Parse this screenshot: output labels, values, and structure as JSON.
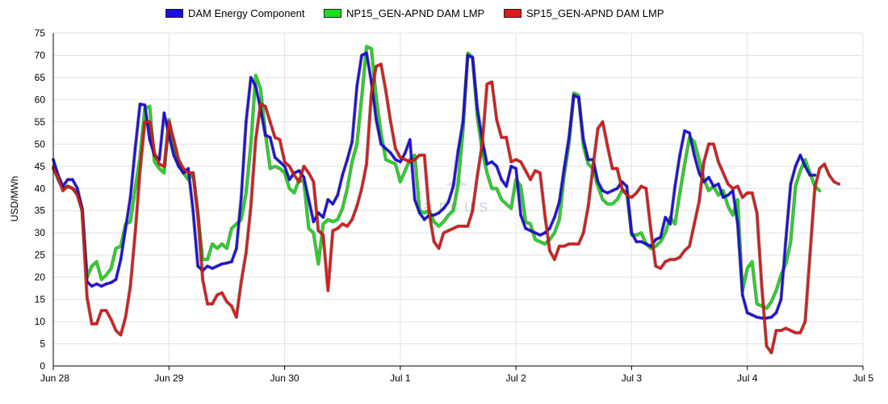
{
  "legend": {
    "items": [
      {
        "label": "DAM Energy Component",
        "color": "#1a0de6"
      },
      {
        "label": "NP15_GEN-APND DAM LMP",
        "color": "#1adf1a"
      },
      {
        "label": "SP15_GEN-APND DAM LMP",
        "color": "#e01818"
      }
    ]
  },
  "watermark": {
    "text": "arcus"
  },
  "chart_data": {
    "type": "line",
    "title": "",
    "xlabel": "",
    "ylabel": "USD/MWh",
    "ylim": [
      0,
      75
    ],
    "yticks": [
      0,
      5,
      10,
      15,
      20,
      25,
      30,
      35,
      40,
      45,
      50,
      55,
      60,
      65,
      70,
      75
    ],
    "xticks": [
      "Jun 28",
      "Jun 29",
      "Jun 30",
      "Jul 1",
      "Jul 2",
      "Jul 3",
      "Jul 4",
      "Jul 5"
    ],
    "x_unit": "hour",
    "grid": true,
    "legend_position": "top",
    "series": [
      {
        "name": "DAM Energy Component",
        "color": "#1a0de6",
        "values": [
          46.5,
          43.0,
          40.5,
          42.0,
          42.0,
          40.0,
          35.5,
          19.0,
          18.0,
          18.5,
          18.0,
          18.5,
          18.8,
          19.5,
          24.0,
          31.0,
          38.0,
          49.0,
          59.0,
          58.8,
          51.0,
          47.5,
          46.5,
          57.0,
          52.0,
          47.5,
          45.0,
          43.5,
          44.5,
          35.0,
          22.5,
          21.5,
          22.5,
          22.0,
          22.5,
          23.0,
          23.2,
          23.5,
          26.5,
          38.0,
          55.0,
          65.0,
          63.0,
          58.0,
          52.0,
          51.5,
          47.0,
          46.0,
          45.0,
          42.0,
          43.5,
          44.0,
          42.5,
          37.5,
          32.5,
          34.5,
          33.5,
          37.5,
          36.5,
          38.5,
          43.0,
          46.5,
          50.5,
          63.0,
          70.0,
          70.5,
          64.0,
          55.5,
          50.0,
          49.0,
          48.0,
          46.5,
          46.0,
          48.0,
          51.0,
          37.5,
          34.5,
          33.0,
          34.0,
          34.0,
          34.5,
          35.5,
          37.0,
          40.5,
          48.5,
          55.0,
          70.0,
          69.5,
          58.0,
          51.0,
          45.5,
          46.0,
          45.0,
          42.0,
          40.5,
          45.0,
          44.5,
          34.0,
          31.0,
          30.5,
          30.0,
          29.5,
          30.0,
          31.0,
          33.5,
          37.0,
          44.5,
          51.5,
          61.0,
          60.5,
          51.0,
          46.5,
          46.5,
          41.5,
          39.5,
          39.0,
          39.5,
          40.0,
          41.5,
          40.5,
          30.0,
          28.0,
          28.0,
          27.5,
          27.0,
          28.5,
          29.0,
          33.5,
          32.0,
          40.5,
          47.5,
          53.0,
          52.5,
          47.5,
          43.5,
          41.5,
          42.5,
          40.5,
          41.0,
          38.0,
          38.5,
          39.5,
          32.0,
          16.0,
          12.0,
          11.5,
          11.0,
          10.8,
          10.8,
          11.0,
          12.0,
          15.0,
          28.5,
          41.0,
          45.0,
          47.5,
          45.0,
          43.0,
          43.0
        ]
      },
      {
        "name": "NP15_GEN-APND DAM LMP",
        "color": "#1adf1a",
        "values": [
          45.0,
          42.0,
          40.0,
          40.5,
          40.0,
          39.0,
          35.0,
          20.0,
          22.5,
          23.5,
          19.5,
          20.5,
          22.0,
          26.5,
          27.0,
          32.0,
          32.5,
          40.0,
          47.0,
          58.0,
          58.5,
          46.0,
          44.5,
          43.5,
          55.5,
          49.5,
          45.5,
          43.5,
          42.0,
          43.5,
          34.5,
          24.0,
          24.0,
          27.5,
          26.5,
          27.5,
          26.5,
          31.0,
          32.0,
          33.0,
          39.0,
          50.0,
          65.5,
          62.5,
          52.5,
          44.5,
          45.0,
          44.5,
          43.5,
          40.0,
          39.0,
          42.0,
          41.5,
          31.0,
          30.0,
          23.0,
          32.0,
          33.0,
          32.5,
          33.0,
          35.5,
          40.0,
          46.0,
          50.0,
          60.5,
          72.0,
          71.5,
          60.5,
          52.5,
          46.5,
          46.0,
          45.5,
          41.5,
          44.0,
          46.5,
          47.5,
          35.0,
          34.5,
          35.0,
          32.5,
          31.5,
          32.5,
          34.0,
          35.0,
          41.0,
          53.0,
          70.5,
          69.5,
          56.0,
          48.5,
          43.5,
          40.0,
          40.0,
          37.5,
          36.5,
          35.5,
          42.0,
          40.5,
          32.5,
          32.0,
          28.5,
          28.0,
          27.5,
          28.5,
          30.0,
          33.0,
          43.0,
          50.0,
          61.5,
          61.0,
          49.5,
          45.5,
          44.5,
          40.5,
          37.5,
          36.5,
          36.5,
          37.5,
          39.5,
          39.0,
          29.5,
          29.5,
          30.0,
          27.5,
          26.5,
          27.0,
          28.0,
          30.0,
          33.5,
          32.0,
          39.0,
          45.5,
          51.5,
          50.5,
          46.5,
          42.0,
          39.5,
          40.5,
          38.5,
          39.5,
          36.0,
          34.0,
          37.5,
          17.0,
          22.0,
          23.5,
          14.0,
          13.5,
          13.0,
          14.5,
          17.0,
          20.5,
          23.0,
          28.0,
          40.5,
          44.0,
          46.5,
          43.5,
          40.5,
          39.5
        ]
      },
      {
        "name": "SP15_GEN-APND DAM LMP",
        "color": "#e01818",
        "values": [
          44.5,
          42.5,
          39.5,
          40.5,
          40.0,
          38.5,
          35.0,
          15.5,
          9.5,
          9.5,
          12.5,
          12.5,
          10.5,
          8.0,
          7.0,
          11.0,
          18.0,
          30.0,
          44.0,
          55.0,
          55.0,
          48.0,
          45.5,
          45.0,
          55.0,
          51.0,
          46.5,
          44.5,
          43.5,
          43.5,
          34.0,
          19.5,
          14.0,
          14.0,
          16.0,
          16.5,
          14.5,
          13.5,
          11.0,
          19.0,
          25.5,
          36.0,
          51.0,
          59.0,
          58.5,
          55.0,
          51.5,
          51.0,
          46.0,
          45.0,
          43.0,
          41.5,
          45.0,
          43.5,
          41.5,
          30.5,
          29.5,
          17.0,
          30.5,
          31.0,
          32.0,
          31.5,
          33.0,
          36.0,
          40.0,
          45.5,
          61.5,
          67.5,
          68.0,
          62.0,
          55.0,
          49.0,
          47.0,
          46.5,
          46.0,
          46.5,
          47.5,
          47.5,
          34.5,
          28.0,
          26.5,
          30.0,
          30.5,
          31.0,
          31.5,
          31.5,
          31.5,
          35.0,
          43.0,
          50.0,
          63.5,
          64.0,
          55.5,
          51.5,
          51.5,
          46.0,
          46.5,
          46.0,
          44.0,
          42.0,
          44.0,
          43.5,
          34.0,
          26.0,
          24.0,
          27.0,
          27.0,
          27.5,
          27.5,
          27.5,
          30.0,
          36.0,
          45.0,
          53.5,
          55.0,
          49.5,
          44.5,
          44.5,
          40.0,
          38.5,
          38.0,
          39.0,
          40.5,
          40.0,
          30.5,
          22.5,
          22.0,
          23.5,
          24.0,
          24.0,
          24.5,
          26.0,
          27.0,
          32.0,
          37.0,
          46.0,
          50.0,
          50.0,
          46.0,
          43.5,
          41.0,
          40.0,
          40.5,
          38.0,
          39.0,
          39.0,
          34.5,
          18.0,
          4.5,
          3.0,
          8.0,
          8.0,
          8.5,
          8.0,
          7.5,
          7.5,
          10.0,
          25.0,
          40.0,
          44.5,
          45.5,
          43.0,
          41.5,
          41.0
        ]
      }
    ]
  }
}
